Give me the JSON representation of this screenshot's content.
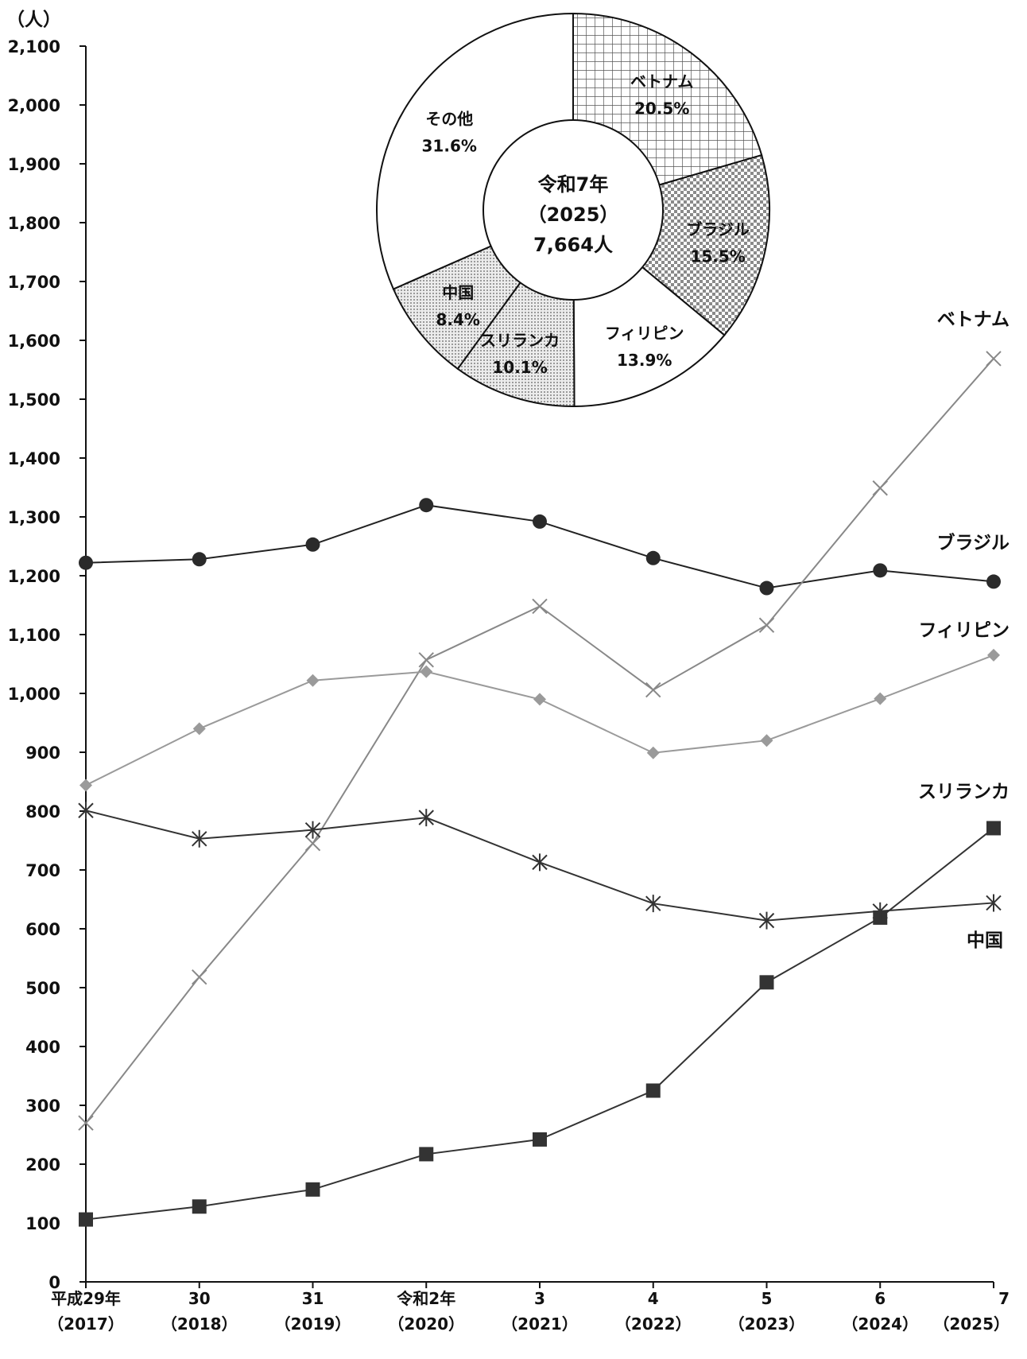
{
  "chart_data": [
    {
      "type": "line",
      "unit_label": "（人）",
      "ylim": [
        0,
        2100
      ],
      "y_ticks": [
        "0",
        "100",
        "200",
        "300",
        "400",
        "500",
        "600",
        "700",
        "800",
        "900",
        "1,000",
        "1,100",
        "1,200",
        "1,300",
        "1,400",
        "1,500",
        "1,600",
        "1,700",
        "1,800",
        "1,900",
        "2,000",
        "2,100"
      ],
      "categories": [
        {
          "line1": "平成29年",
          "line2": "（2017）"
        },
        {
          "line1": "30",
          "line2": "（2018）"
        },
        {
          "line1": "31",
          "line2": "（2019）"
        },
        {
          "line1": "令和2年",
          "line2": "（2020）"
        },
        {
          "line1": "3",
          "line2": "（2021）"
        },
        {
          "line1": "4",
          "line2": "（2022）"
        },
        {
          "line1": "5",
          "line2": "（2023）"
        },
        {
          "line1": "6",
          "line2": "（2024）"
        },
        {
          "line1": "7",
          "line2": "（2025）"
        }
      ],
      "series": [
        {
          "name": "ブラジル",
          "color": "#222222",
          "marker": "circle",
          "values": [
            1222,
            1228,
            1253,
            1320,
            1292,
            1230,
            1179,
            1209,
            1190
          ]
        },
        {
          "name": "ベトナム",
          "color": "#888888",
          "marker": "x",
          "values": [
            270,
            518,
            745,
            1057,
            1148,
            1006,
            1116,
            1349,
            1569
          ]
        },
        {
          "name": "フィリピン",
          "color": "#9a9a9a",
          "marker": "diamond",
          "values": [
            844,
            940,
            1022,
            1037,
            990,
            899,
            920,
            991,
            1065
          ]
        },
        {
          "name": "スリランカ",
          "color": "#333333",
          "marker": "square",
          "values": [
            106,
            128,
            157,
            217,
            242,
            325,
            509,
            619,
            771
          ]
        },
        {
          "name": "中国",
          "color": "#333333",
          "marker": "asterisk",
          "values": [
            801,
            753,
            768,
            789,
            713,
            643,
            614,
            630,
            644
          ]
        }
      ]
    },
    {
      "type": "pie",
      "donut": true,
      "center_title": "令和7年",
      "center_year": "（2025）",
      "center_total": "7,664人",
      "slices": [
        {
          "label": "ベトナム",
          "value_label": "20.5%",
          "value": 20.5,
          "pattern": "grid"
        },
        {
          "label": "ブラジル",
          "value_label": "15.5%",
          "value": 15.5,
          "pattern": "check"
        },
        {
          "label": "フィリピン",
          "value_label": "13.9%",
          "value": 13.9,
          "pattern": "none"
        },
        {
          "label": "スリランカ",
          "value_label": "10.1%",
          "value": 10.1,
          "pattern": "dots"
        },
        {
          "label": "中国",
          "value_label": "8.4%",
          "value": 8.4,
          "pattern": "dots"
        },
        {
          "label": "その他",
          "value_label": "31.6%",
          "value": 31.6,
          "pattern": "none"
        }
      ]
    }
  ]
}
